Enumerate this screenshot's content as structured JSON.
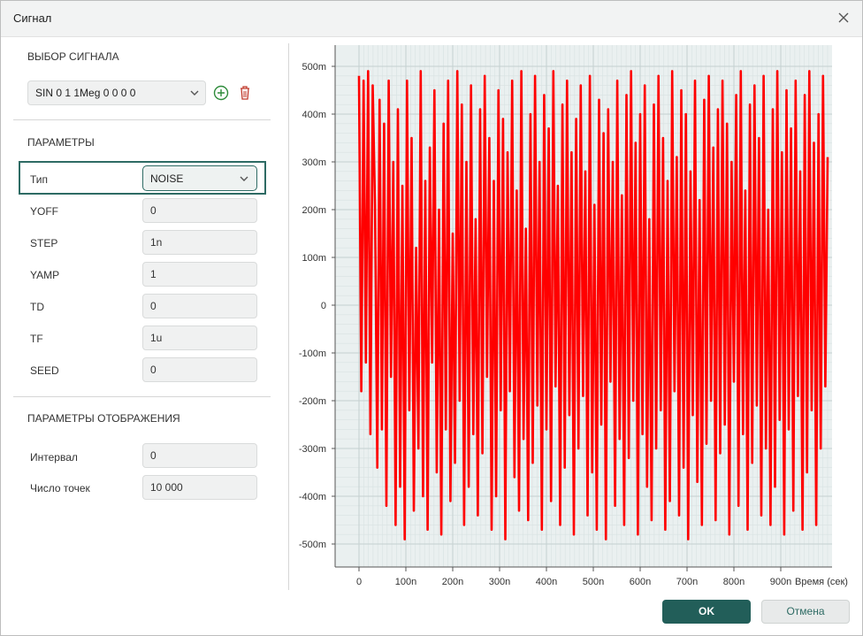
{
  "window": {
    "title": "Сигнал"
  },
  "signal_select": {
    "section_title": "ВЫБОР СИГНАЛА",
    "value": "SIN 0 1 1Meg 0 0 0 0"
  },
  "params": {
    "section_title": "ПАРАМЕТРЫ",
    "type": {
      "label": "Тип",
      "value": "NOISE"
    },
    "fields": [
      {
        "label": "YOFF",
        "value": "0"
      },
      {
        "label": "STEP",
        "value": "1n"
      },
      {
        "label": "YAMP",
        "value": "1"
      },
      {
        "label": "TD",
        "value": "0"
      },
      {
        "label": "TF",
        "value": "1u"
      },
      {
        "label": "SEED",
        "value": "0"
      }
    ]
  },
  "display": {
    "section_title": "ПАРАМЕТРЫ ОТОБРАЖЕНИЯ",
    "fields": [
      {
        "label": "Интервал",
        "value": "0"
      },
      {
        "label": "Число точек",
        "value": "10 000"
      }
    ]
  },
  "buttons": {
    "ok": "OK",
    "cancel": "Отмена"
  },
  "colors": {
    "accent": "#225e59",
    "signal": "#ff0000",
    "delete": "#c0392b",
    "add": "#2e8b3a"
  },
  "chart_data": {
    "type": "line",
    "xlabel": "Время (сек)",
    "ylabel": "",
    "xlim": [
      0,
      1000
    ],
    "ylim": [
      -500,
      500
    ],
    "x_ticks": [
      "0",
      "100n",
      "200n",
      "300n",
      "400n",
      "500n",
      "600n",
      "700n",
      "800n",
      "900n"
    ],
    "y_ticks": [
      "500m",
      "400m",
      "300m",
      "200m",
      "100m",
      "0",
      "-100m",
      "-200m",
      "-300m",
      "-400m",
      "-500m"
    ],
    "grid": true,
    "series": [
      {
        "values": [
          480,
          -180,
          470,
          -120,
          490,
          -270,
          460,
          210,
          -340,
          430,
          -260,
          380,
          -420,
          470,
          -150,
          300,
          -460,
          410,
          -380,
          250,
          -490,
          470,
          -220,
          350,
          -430,
          120,
          -300,
          490,
          -400,
          260,
          -470,
          330,
          -120,
          450,
          -350,
          200,
          -480,
          380,
          -260,
          470,
          -410,
          150,
          -330,
          490,
          -200,
          420,
          -460,
          300,
          -380,
          460,
          -270,
          180,
          -440,
          410,
          -310,
          480,
          -150,
          350,
          -470,
          260,
          -400,
          450,
          -220,
          390,
          -490,
          320,
          -180,
          470,
          -360,
          240,
          -430,
          490,
          -280,
          160,
          -450,
          400,
          -330,
          480,
          -210,
          300,
          -470,
          440,
          -260,
          370,
          -410,
          490,
          -170,
          250,
          -460,
          420,
          -340,
          470,
          -230,
          320,
          -480,
          390,
          -300,
          460,
          -190,
          280,
          -440,
          480,
          -350,
          210,
          -470,
          430,
          -250,
          360,
          -490,
          410,
          -160,
          300,
          -420,
          470,
          -280,
          230,
          -460,
          440,
          -320,
          490,
          -200,
          340,
          -480,
          400,
          -270,
          460,
          -380,
          180,
          -450,
          420,
          -300,
          480,
          -220,
          350,
          -470,
          260,
          -410,
          490,
          -180,
          310,
          -440,
          450,
          -340,
          400,
          -490,
          280,
          -230,
          470,
          -370,
          220,
          -460,
          430,
          -290,
          480,
          -200,
          330,
          -450,
          410,
          -310,
          470,
          -250,
          380,
          -480,
          300,
          -160,
          440,
          -420,
          490,
          -270,
          240,
          -470,
          420,
          -330,
          460,
          -210,
          350,
          -440,
          480,
          -300,
          200,
          -460,
          410,
          -380,
          490,
          -240,
          320,
          -480,
          450,
          -260,
          370,
          -430,
          470,
          -190,
          280,
          -470,
          440,
          -350,
          490,
          -220,
          340,
          -460,
          400,
          -300,
          480,
          -170,
          310
        ]
      }
    ]
  }
}
